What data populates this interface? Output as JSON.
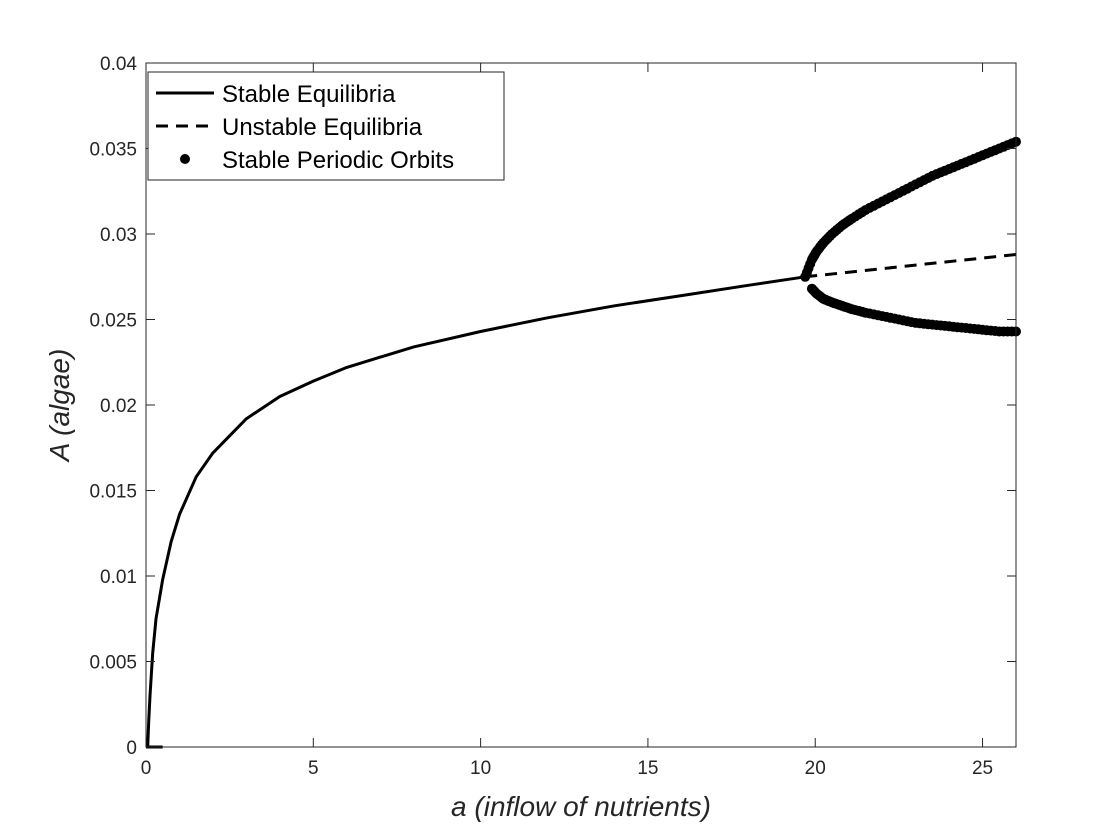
{
  "chart_data": {
    "type": "line",
    "xlabel": "a (inflow of nutrients)",
    "ylabel": "A (algae)",
    "xlim": [
      0,
      26
    ],
    "ylim": [
      0,
      0.04
    ],
    "x_ticks": [
      0,
      5,
      10,
      15,
      20,
      25
    ],
    "x_tick_labels": [
      "0",
      "5",
      "10",
      "15",
      "20",
      "25"
    ],
    "y_ticks": [
      0,
      0.005,
      0.01,
      0.015,
      0.02,
      0.025,
      0.03,
      0.035,
      0.04
    ],
    "y_tick_labels": [
      "0",
      "0.005",
      "0.01",
      "0.015",
      "0.02",
      "0.025",
      "0.03",
      "0.035",
      "0.04"
    ],
    "grid": false,
    "legend_position": "top-left",
    "series": [
      {
        "name": "Stable Equilibria",
        "style": "solid",
        "color": "#000000",
        "segments": [
          {
            "x": [
              0.05,
              0.08,
              0.12,
              0.2,
              0.3,
              0.5,
              0.75,
              1,
              1.5,
              2,
              3,
              4,
              5,
              6,
              8,
              10,
              12,
              14,
              16,
              18,
              19.7
            ],
            "y": [
              0.0,
              0.0015,
              0.003,
              0.0055,
              0.0075,
              0.0098,
              0.012,
              0.0136,
              0.0158,
              0.0172,
              0.0192,
              0.0205,
              0.0214,
              0.0222,
              0.0234,
              0.0243,
              0.0251,
              0.0258,
              0.0264,
              0.027,
              0.0275
            ]
          },
          {
            "x": [
              0,
              0.5
            ],
            "y": [
              0,
              0
            ]
          }
        ]
      },
      {
        "name": "Unstable Equilibria",
        "style": "dashed",
        "color": "#000000",
        "x": [
          19.7,
          26
        ],
        "y": [
          0.0275,
          0.0288
        ]
      },
      {
        "name": "Stable Periodic Orbits",
        "style": "markers",
        "color": "#000000",
        "upper": {
          "x": [
            19.7,
            19.9,
            20.05,
            20.25,
            20.5,
            20.8,
            21.1,
            21.5,
            22,
            22.5,
            23,
            23.5,
            24,
            24.5,
            25,
            25.5,
            26
          ],
          "y": [
            0.0275,
            0.0285,
            0.029,
            0.0295,
            0.03,
            0.0305,
            0.0309,
            0.0314,
            0.0319,
            0.0324,
            0.0329,
            0.0334,
            0.0338,
            0.0342,
            0.0346,
            0.035,
            0.0354
          ]
        },
        "lower": {
          "x": [
            19.9,
            20.05,
            20.25,
            20.5,
            20.8,
            21.1,
            21.5,
            22,
            22.5,
            23,
            23.5,
            24,
            24.5,
            25,
            25.5,
            26
          ],
          "y": [
            0.0268,
            0.0265,
            0.0262,
            0.026,
            0.0258,
            0.0256,
            0.0254,
            0.0252,
            0.025,
            0.0248,
            0.0247,
            0.0246,
            0.0245,
            0.0244,
            0.0243,
            0.0243
          ]
        }
      }
    ]
  }
}
